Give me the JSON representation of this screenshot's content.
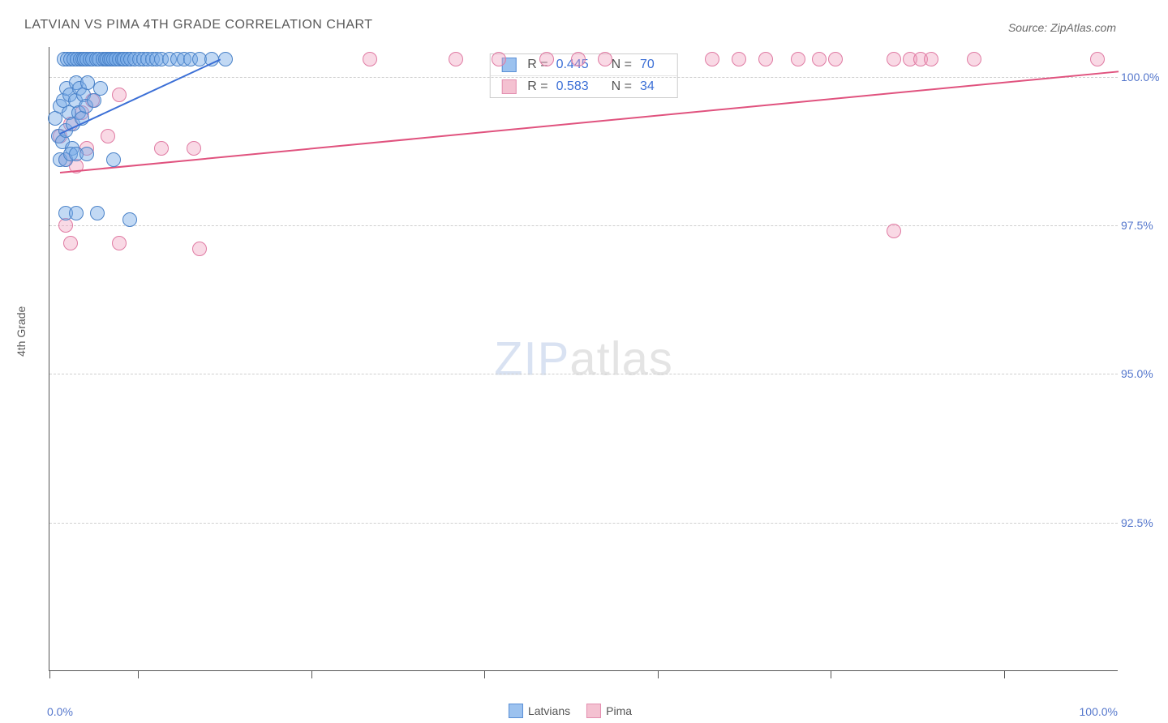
{
  "title": "LATVIAN VS PIMA 4TH GRADE CORRELATION CHART",
  "source": "Source: ZipAtlas.com",
  "watermark": {
    "left": "ZIP",
    "right": "atlas"
  },
  "yaxis_title": "4th Grade",
  "xaxis": {
    "min": 0,
    "max": 100,
    "label_min": "0.0%",
    "label_max": "100.0%",
    "tick_positions_pct": [
      0,
      8.3,
      24.5,
      40.7,
      56.9,
      73.1,
      89.3
    ]
  },
  "yaxis": {
    "min": 90,
    "max": 100.5,
    "gridlines": [
      {
        "val": 100.0,
        "label": "100.0%"
      },
      {
        "val": 97.5,
        "label": "97.5%"
      },
      {
        "val": 95.0,
        "label": "95.0%"
      },
      {
        "val": 92.5,
        "label": "92.5%"
      }
    ]
  },
  "legend": [
    {
      "label": "Latvians",
      "fill": "#9cc2ef",
      "stroke": "#5a8fd6"
    },
    {
      "label": "Pima",
      "fill": "#f4c1d1",
      "stroke": "#e38fb0"
    }
  ],
  "stats": [
    {
      "series": "latvians",
      "R_label": "R =",
      "R": "0.445",
      "N_label": "N =",
      "N": "70",
      "swatch_fill": "#9cc2ef",
      "swatch_stroke": "#5a8fd6"
    },
    {
      "series": "pima",
      "R_label": "R =",
      "R": "0.583",
      "N_label": "N =",
      "N": "34",
      "swatch_fill": "#f4c1d1",
      "swatch_stroke": "#e38fb0"
    }
  ],
  "series": {
    "latvians": {
      "marker_fill": "rgba(120,170,230,0.45)",
      "marker_stroke": "#4a82c8",
      "marker_radius": 9,
      "trend_color": "#3b6fd6",
      "trend": {
        "x1": 1,
        "y1": 99.05,
        "x2": 16,
        "y2": 100.3
      },
      "points": [
        [
          0.5,
          99.3
        ],
        [
          0.8,
          99.0
        ],
        [
          1.0,
          99.5
        ],
        [
          1.2,
          98.9
        ],
        [
          1.3,
          99.6
        ],
        [
          1.4,
          100.3
        ],
        [
          1.5,
          99.1
        ],
        [
          1.6,
          99.8
        ],
        [
          1.7,
          100.3
        ],
        [
          1.8,
          99.4
        ],
        [
          1.9,
          99.7
        ],
        [
          2.0,
          100.3
        ],
        [
          2.1,
          98.8
        ],
        [
          2.2,
          99.2
        ],
        [
          2.3,
          100.3
        ],
        [
          2.4,
          99.6
        ],
        [
          2.5,
          99.9
        ],
        [
          2.6,
          100.3
        ],
        [
          2.7,
          99.4
        ],
        [
          2.8,
          99.8
        ],
        [
          2.9,
          100.3
        ],
        [
          3.0,
          99.3
        ],
        [
          3.1,
          100.3
        ],
        [
          3.2,
          99.7
        ],
        [
          3.3,
          100.3
        ],
        [
          3.4,
          99.5
        ],
        [
          3.5,
          100.3
        ],
        [
          3.6,
          99.9
        ],
        [
          3.8,
          100.3
        ],
        [
          4.0,
          100.3
        ],
        [
          4.2,
          99.6
        ],
        [
          4.4,
          100.3
        ],
        [
          4.6,
          100.3
        ],
        [
          4.8,
          99.8
        ],
        [
          5.0,
          100.3
        ],
        [
          5.2,
          100.3
        ],
        [
          5.4,
          100.3
        ],
        [
          5.6,
          100.3
        ],
        [
          5.8,
          100.3
        ],
        [
          6.0,
          100.3
        ],
        [
          6.2,
          100.3
        ],
        [
          6.5,
          100.3
        ],
        [
          6.8,
          100.3
        ],
        [
          7.0,
          100.3
        ],
        [
          7.3,
          100.3
        ],
        [
          7.6,
          100.3
        ],
        [
          8.0,
          100.3
        ],
        [
          8.4,
          100.3
        ],
        [
          8.8,
          100.3
        ],
        [
          9.2,
          100.3
        ],
        [
          9.6,
          100.3
        ],
        [
          10.0,
          100.3
        ],
        [
          10.5,
          100.3
        ],
        [
          11.2,
          100.3
        ],
        [
          12.0,
          100.3
        ],
        [
          12.6,
          100.3
        ],
        [
          13.2,
          100.3
        ],
        [
          14.0,
          100.3
        ],
        [
          15.2,
          100.3
        ],
        [
          16.5,
          100.3
        ],
        [
          1.0,
          98.6
        ],
        [
          1.5,
          98.6
        ],
        [
          2.0,
          98.7
        ],
        [
          2.5,
          98.7
        ],
        [
          3.5,
          98.7
        ],
        [
          6.0,
          98.6
        ],
        [
          1.5,
          97.7
        ],
        [
          2.5,
          97.7
        ],
        [
          4.5,
          97.7
        ],
        [
          7.5,
          97.6
        ]
      ]
    },
    "pima": {
      "marker_fill": "rgba(240,160,190,0.40)",
      "marker_stroke": "#e07ba3",
      "marker_radius": 9,
      "trend_color": "#e0527e",
      "trend": {
        "x1": 1,
        "y1": 98.4,
        "x2": 100,
        "y2": 100.1
      },
      "points": [
        [
          1.0,
          99.0
        ],
        [
          1.5,
          98.6
        ],
        [
          2.0,
          99.2
        ],
        [
          2.5,
          98.5
        ],
        [
          3.0,
          99.4
        ],
        [
          3.5,
          98.8
        ],
        [
          4.0,
          99.6
        ],
        [
          5.5,
          99.0
        ],
        [
          6.5,
          99.7
        ],
        [
          10.5,
          98.8
        ],
        [
          13.5,
          98.8
        ],
        [
          30.0,
          100.3
        ],
        [
          38.0,
          100.3
        ],
        [
          42.0,
          100.3
        ],
        [
          46.5,
          100.3
        ],
        [
          49.5,
          100.3
        ],
        [
          52.0,
          100.3
        ],
        [
          62.0,
          100.3
        ],
        [
          64.5,
          100.3
        ],
        [
          67.0,
          100.3
        ],
        [
          70.0,
          100.3
        ],
        [
          72.0,
          100.3
        ],
        [
          73.5,
          100.3
        ],
        [
          79.0,
          100.3
        ],
        [
          80.5,
          100.3
        ],
        [
          81.5,
          100.3
        ],
        [
          82.5,
          100.3
        ],
        [
          86.5,
          100.3
        ],
        [
          98.0,
          100.3
        ],
        [
          1.5,
          97.5
        ],
        [
          2.0,
          97.2
        ],
        [
          6.5,
          97.2
        ],
        [
          14.0,
          97.1
        ],
        [
          79.0,
          97.4
        ]
      ]
    }
  }
}
